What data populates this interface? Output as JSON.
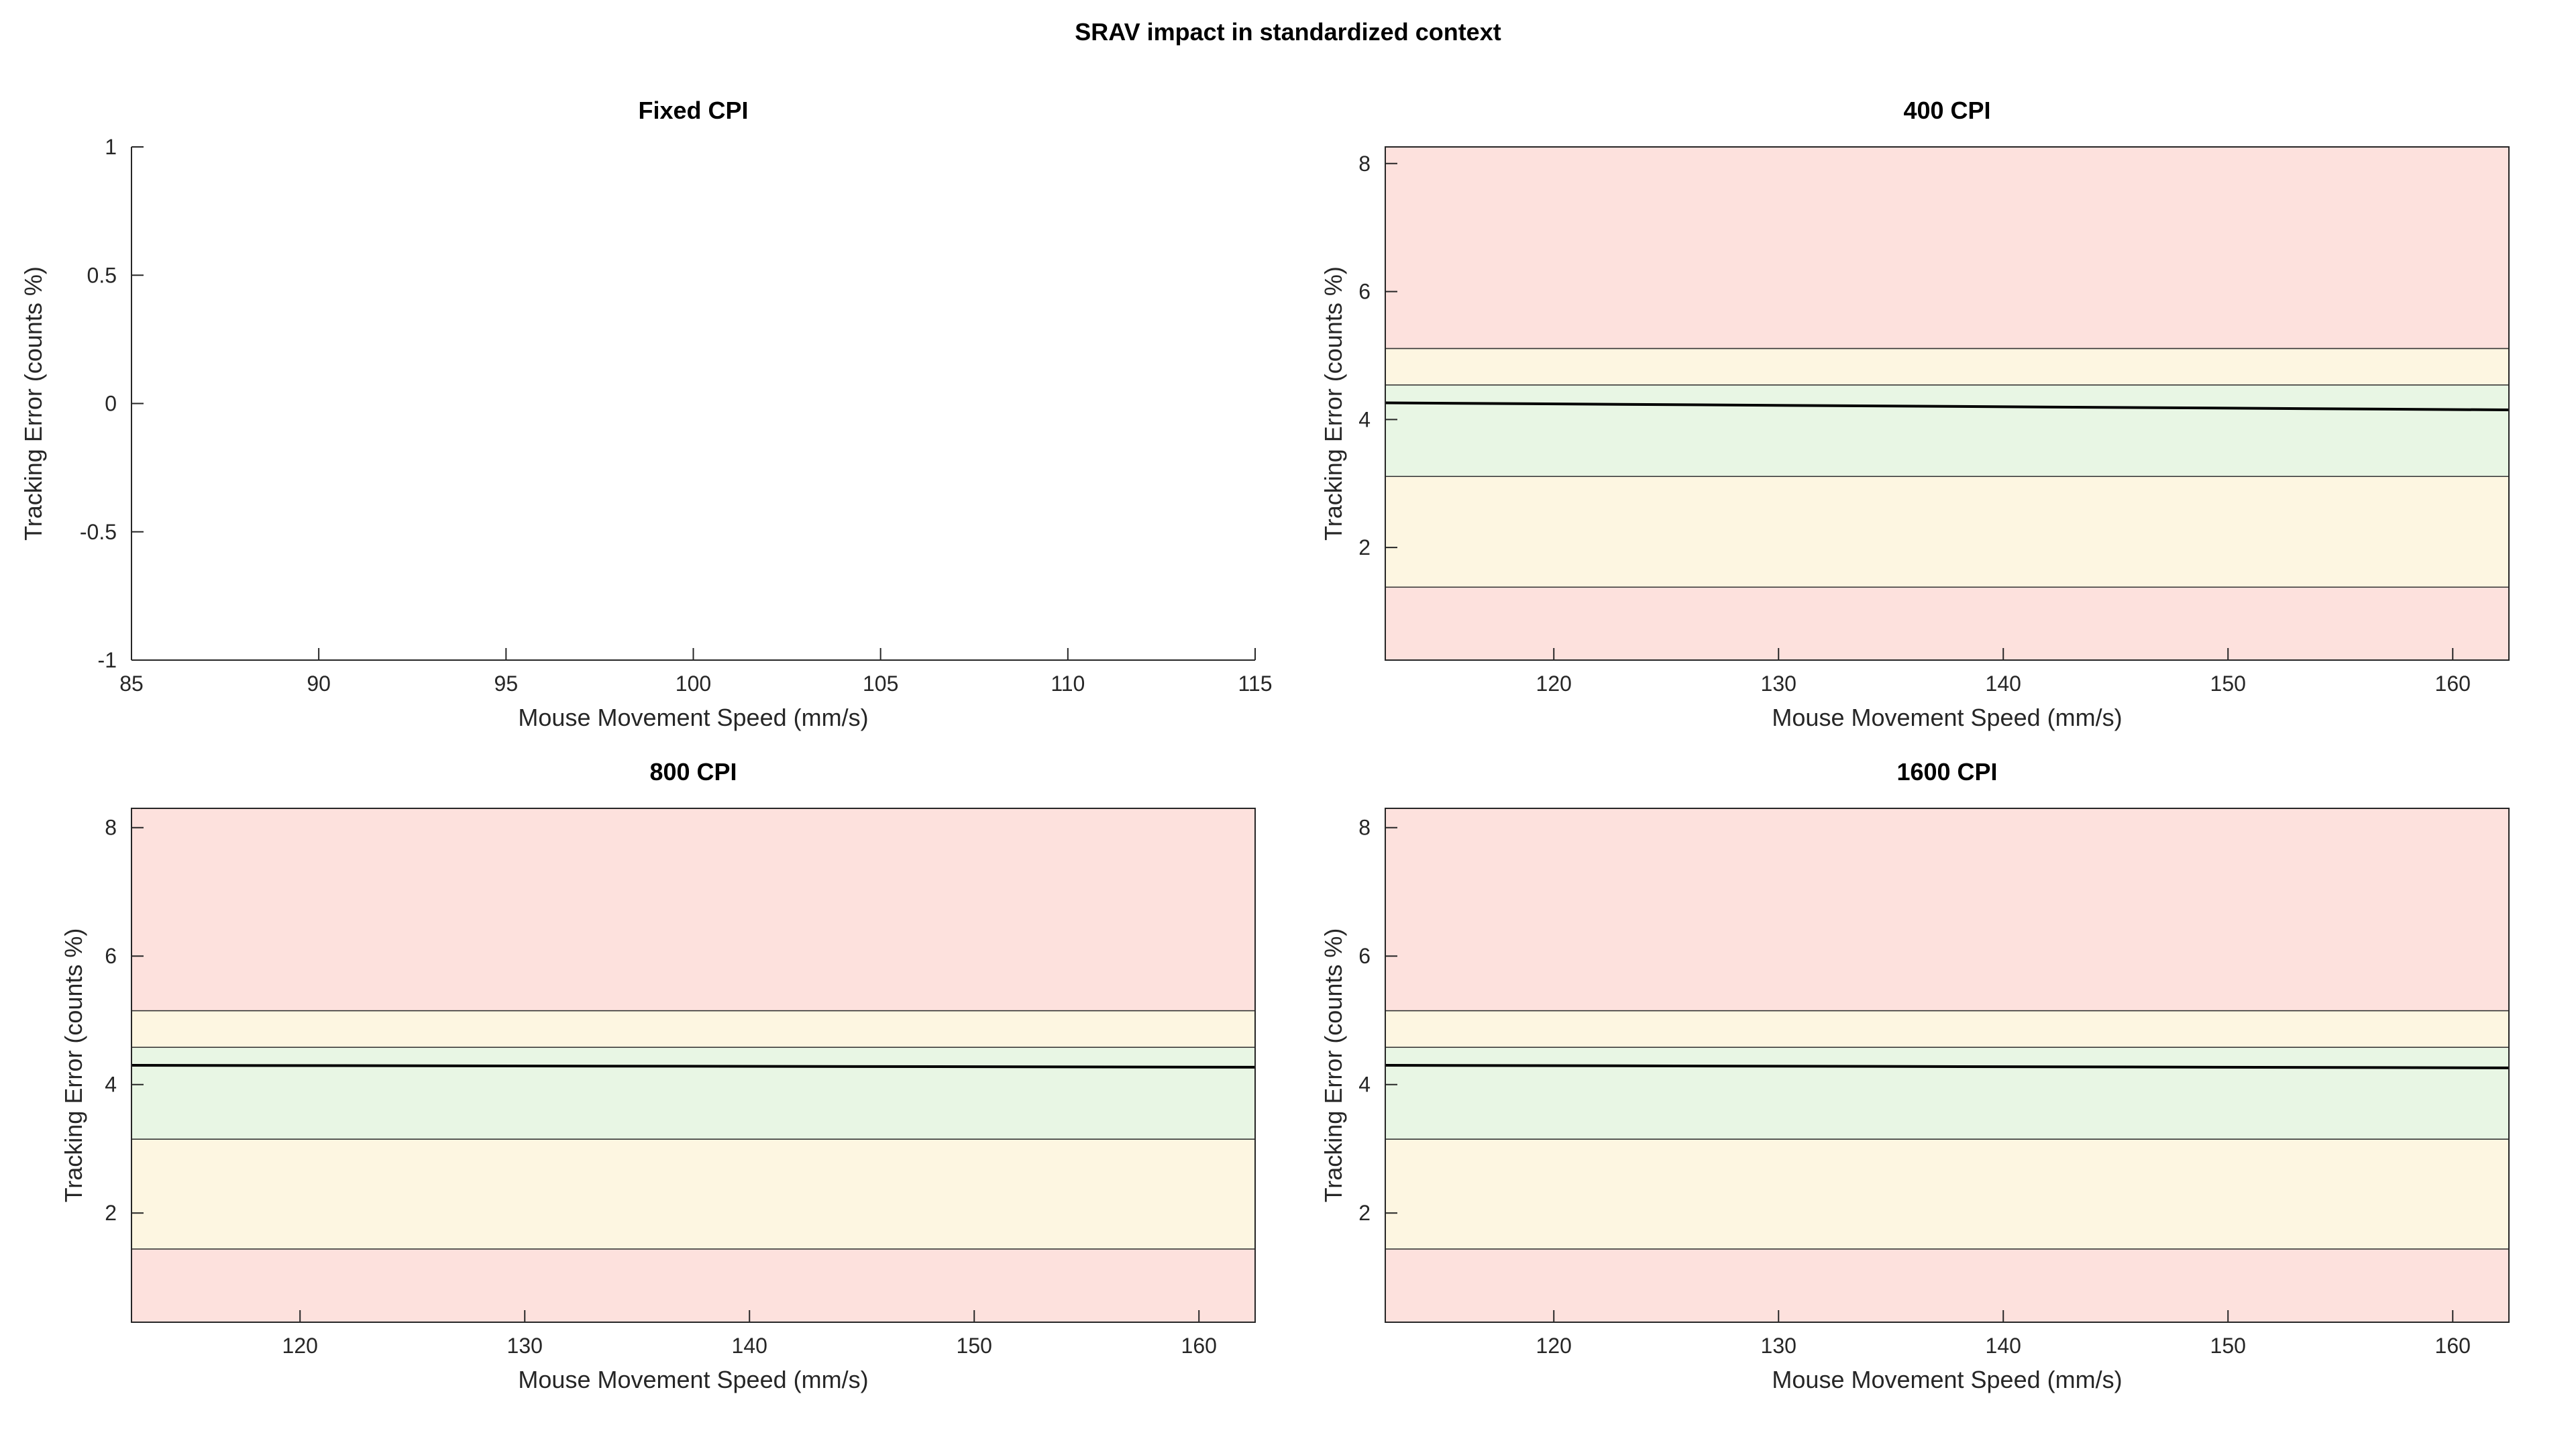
{
  "figure_title": "SRAV impact in standardized context",
  "colors": {
    "red": "#fde1dd",
    "yellow": "#fdf6e1",
    "green": "#e8f6e4",
    "line": "#000000",
    "axis": "#262626"
  },
  "chart_data": [
    {
      "type": "line",
      "title": "Fixed CPI",
      "xlabel": "Mouse Movement Speed (mm/s)",
      "ylabel": "Tracking Error (counts %)",
      "xlim": [
        85,
        115
      ],
      "ylim": [
        -1,
        1
      ],
      "xticks": [
        85,
        90,
        95,
        100,
        105,
        110,
        115
      ],
      "yticks": [
        -1,
        -0.5,
        0,
        0.5,
        1
      ],
      "bands": [],
      "series": []
    },
    {
      "type": "line",
      "title": "400 CPI",
      "xlabel": "Mouse Movement Speed (mm/s)",
      "ylabel": "Tracking Error (counts %)",
      "xlim": [
        112.5,
        162.5
      ],
      "ylim": [
        0.24,
        8.26
      ],
      "xticks": [
        120,
        130,
        140,
        150,
        160
      ],
      "yticks": [
        2,
        4,
        6,
        8
      ],
      "bands": [
        {
          "from": 0.24,
          "to": 1.38,
          "zone": "red"
        },
        {
          "from": 1.38,
          "to": 3.11,
          "zone": "yellow"
        },
        {
          "from": 3.11,
          "to": 4.54,
          "zone": "green"
        },
        {
          "from": 4.54,
          "to": 5.11,
          "zone": "yellow"
        },
        {
          "from": 5.11,
          "to": 8.26,
          "zone": "red"
        }
      ],
      "series": [
        {
          "name": "tracking error",
          "x": [
            112.5,
            162.5
          ],
          "y": [
            4.26,
            4.15
          ]
        }
      ]
    },
    {
      "type": "line",
      "title": "800 CPI",
      "xlabel": "Mouse Movement Speed (mm/s)",
      "ylabel": "Tracking Error (counts %)",
      "xlim": [
        112.5,
        162.5
      ],
      "ylim": [
        0.3,
        8.3
      ],
      "xticks": [
        120,
        130,
        140,
        150,
        160
      ],
      "yticks": [
        2,
        4,
        6,
        8
      ],
      "bands": [
        {
          "from": 0.3,
          "to": 1.44,
          "zone": "red"
        },
        {
          "from": 1.44,
          "to": 3.15,
          "zone": "yellow"
        },
        {
          "from": 3.15,
          "to": 4.58,
          "zone": "green"
        },
        {
          "from": 4.58,
          "to": 5.15,
          "zone": "yellow"
        },
        {
          "from": 5.15,
          "to": 8.3,
          "zone": "red"
        }
      ],
      "series": [
        {
          "name": "tracking error",
          "x": [
            112.5,
            162.5
          ],
          "y": [
            4.3,
            4.27
          ]
        }
      ]
    },
    {
      "type": "line",
      "title": "1600 CPI",
      "xlabel": "Mouse Movement Speed (mm/s)",
      "ylabel": "Tracking Error (counts %)",
      "xlim": [
        112.5,
        162.5
      ],
      "ylim": [
        0.3,
        8.3
      ],
      "xticks": [
        120,
        130,
        140,
        150,
        160
      ],
      "yticks": [
        2,
        4,
        6,
        8
      ],
      "bands": [
        {
          "from": 0.3,
          "to": 1.44,
          "zone": "red"
        },
        {
          "from": 1.44,
          "to": 3.15,
          "zone": "yellow"
        },
        {
          "from": 3.15,
          "to": 4.58,
          "zone": "green"
        },
        {
          "from": 4.58,
          "to": 5.15,
          "zone": "yellow"
        },
        {
          "from": 5.15,
          "to": 8.3,
          "zone": "red"
        }
      ],
      "series": [
        {
          "name": "tracking error",
          "x": [
            112.5,
            162.5
          ],
          "y": [
            4.3,
            4.26
          ]
        }
      ]
    }
  ]
}
